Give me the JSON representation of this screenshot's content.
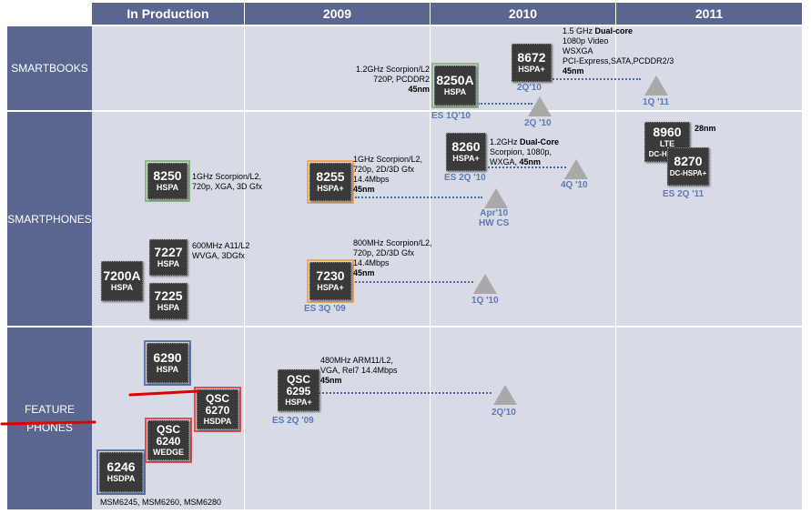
{
  "headers": {
    "c0": "In Production",
    "c1": "2009",
    "c2": "2010",
    "c3": "2011"
  },
  "rows": {
    "r0": "SMARTBOOKS",
    "r1": "SMARTPHONES",
    "r2a": "FEATURE",
    "r2b": "PHONES"
  },
  "chips": {
    "c8250a": {
      "name": "8250A",
      "sub": "HSPA"
    },
    "c8672": {
      "name": "8672",
      "sub": "HSPA+"
    },
    "c8250": {
      "name": "8250",
      "sub": "HSPA"
    },
    "c8255": {
      "name": "8255",
      "sub": "HSPA+"
    },
    "c8260": {
      "name": "8260",
      "sub": "HSPA+"
    },
    "c8960": {
      "name": "8960",
      "sub1": "LTE",
      "sub2": "DC-HSPA+"
    },
    "c8270": {
      "name": "8270",
      "sub": "DC-HSPA+"
    },
    "c7227": {
      "name": "7227",
      "sub": "HSPA"
    },
    "c7200a": {
      "name": "7200A",
      "sub": "HSPA"
    },
    "c7225": {
      "name": "7225",
      "sub": "HSPA"
    },
    "c7230": {
      "name": "7230",
      "sub": "HSPA+"
    },
    "c6290": {
      "name": "6290",
      "sub": "HSPA"
    },
    "cqsc6295": {
      "l1": "QSC",
      "l2": "6295",
      "sub": "HSPA+"
    },
    "cqsc6270": {
      "l1": "QSC",
      "l2": "6270",
      "sub": "HSDPA"
    },
    "cqsc6240": {
      "l1": "QSC",
      "l2": "6240",
      "sub": "WEDGE"
    },
    "c6246": {
      "name": "6246",
      "sub": "HSDPA"
    }
  },
  "notes": {
    "n8250a": {
      "l1": "1.2GHz Scorpion/L2",
      "l2": "720P, PCDDR2",
      "l3": "45nm"
    },
    "n8672": {
      "l1a": "1.5 GHz ",
      "l1b": "Dual-core",
      "l2": "1080p Video",
      "l3": "WSXGA",
      "l4": "PCI-Express,SATA,PCDDR2/3",
      "l5": "45nm"
    },
    "n8250": {
      "l1": "1GHz Scorpion/L2,",
      "l2": "720p, XGA, 3D Gfx"
    },
    "n8255": {
      "l1": "1GHz Scorpion/L2,",
      "l2": "720p, 2D/3D Gfx",
      "l3": "14.4Mbps",
      "l4": "45nm"
    },
    "n8260": {
      "l1a": "1.2GHz ",
      "l1b": "Dual-Core",
      "l2": "Scorpion, 1080p,",
      "l3a": "WXGA, ",
      "l3b": "45nm"
    },
    "n8960": {
      "l1": "28nm"
    },
    "n7227": {
      "l1": "600MHz A11/L2",
      "l2": "WVGA, 3DGfx"
    },
    "n7230": {
      "l1": "800MHz Scorpion/L2,",
      "l2": "720p, 2D/3D Gfx",
      "l3": "14.4Mbps",
      "l4": "45nm"
    },
    "n6295": {
      "l1": "480MHz ARM11/L2,",
      "l2": "VGA, Rel7 14.4Mbps",
      "l3": "45nm"
    },
    "n6246": {
      "l1": "MSM6245, MSM6260, MSM6280"
    }
  },
  "dates": {
    "d8250a": "ES 1Q'10",
    "d8672": "2Q'10",
    "t2q10": "2Q '10",
    "t1q11": "1Q '11",
    "d8260": "ES 2Q '10",
    "t4q10": "4Q '10",
    "tapr10a": "Apr'10",
    "tapr10b": "HW CS",
    "d8270": "ES 2Q '11",
    "d7230": "ES 3Q '09",
    "t1q10": "1Q '10",
    "d6295": "ES 2Q '09",
    "t2q10b": "2Q'10"
  }
}
